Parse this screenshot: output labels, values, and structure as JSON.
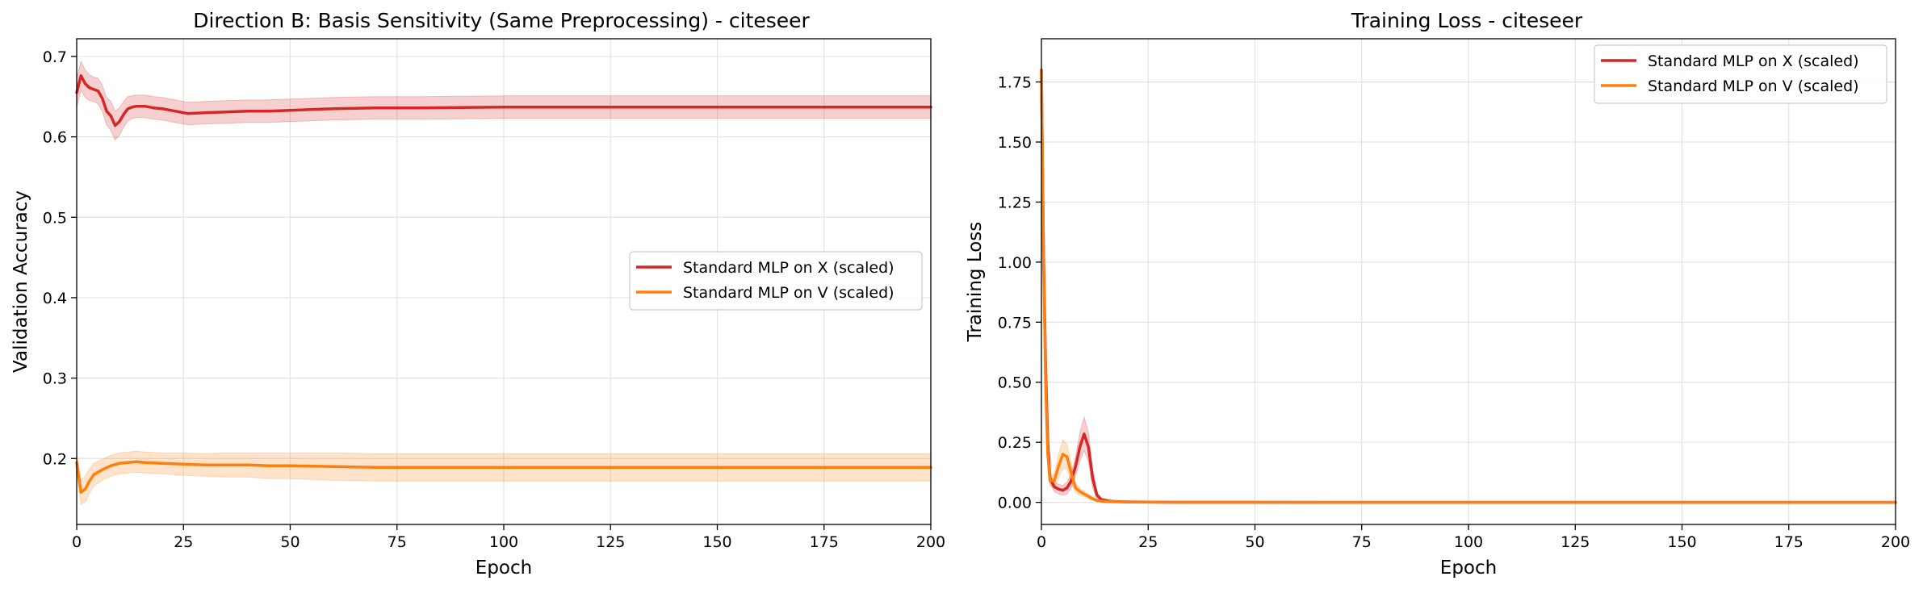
{
  "chart_data": [
    {
      "type": "line",
      "title": "Direction B: Basis Sensitivity (Same Preprocessing) - citeseer",
      "xlabel": "Epoch",
      "ylabel": "Validation Accuracy",
      "xlim": [
        0,
        200
      ],
      "ylim": [
        0.118,
        0.722
      ],
      "xticks": [
        0,
        25,
        50,
        75,
        100,
        125,
        150,
        175,
        200
      ],
      "yticks": [
        0.2,
        0.3,
        0.4,
        0.5,
        0.6,
        0.7
      ],
      "grid": true,
      "legend_position": "center-right",
      "series": [
        {
          "name": "Standard MLP on X (scaled)",
          "color": "#d62728",
          "x": [
            0,
            1,
            2,
            3,
            4,
            5,
            6,
            7,
            8,
            9,
            10,
            11,
            12,
            13,
            14,
            16,
            18,
            20,
            23,
            26,
            30,
            35,
            40,
            45,
            50,
            60,
            70,
            80,
            100,
            125,
            150,
            175,
            200
          ],
          "y": [
            0.655,
            0.676,
            0.666,
            0.661,
            0.659,
            0.657,
            0.648,
            0.632,
            0.626,
            0.614,
            0.619,
            0.628,
            0.635,
            0.637,
            0.638,
            0.638,
            0.636,
            0.635,
            0.632,
            0.629,
            0.63,
            0.631,
            0.632,
            0.632,
            0.633,
            0.635,
            0.636,
            0.636,
            0.637,
            0.637,
            0.637,
            0.637,
            0.637
          ],
          "band": [
            0.018,
            0.018,
            0.017,
            0.016,
            0.015,
            0.016,
            0.016,
            0.017,
            0.018,
            0.018,
            0.017,
            0.016,
            0.015,
            0.014,
            0.014,
            0.014,
            0.014,
            0.014,
            0.014,
            0.014,
            0.014,
            0.014,
            0.014,
            0.014,
            0.014,
            0.014,
            0.014,
            0.014,
            0.014,
            0.014,
            0.014,
            0.014,
            0.014
          ]
        },
        {
          "name": "Standard MLP on V (scaled)",
          "color": "#ff7f0e",
          "x": [
            0,
            1,
            2,
            3,
            4,
            6,
            8,
            10,
            12,
            14,
            16,
            20,
            25,
            30,
            35,
            40,
            45,
            50,
            60,
            70,
            80,
            90,
            100,
            125,
            150,
            175,
            200
          ],
          "y": [
            0.195,
            0.158,
            0.162,
            0.172,
            0.18,
            0.186,
            0.191,
            0.194,
            0.195,
            0.196,
            0.195,
            0.194,
            0.193,
            0.192,
            0.192,
            0.192,
            0.191,
            0.191,
            0.19,
            0.189,
            0.189,
            0.189,
            0.189,
            0.189,
            0.189,
            0.189,
            0.189
          ],
          "band": [
            0.012,
            0.015,
            0.016,
            0.015,
            0.014,
            0.013,
            0.013,
            0.013,
            0.013,
            0.013,
            0.013,
            0.013,
            0.014,
            0.014,
            0.015,
            0.015,
            0.016,
            0.016,
            0.017,
            0.017,
            0.017,
            0.017,
            0.017,
            0.017,
            0.017,
            0.017,
            0.017
          ]
        }
      ]
    },
    {
      "type": "line",
      "title": "Training Loss - citeseer",
      "xlabel": "Epoch",
      "ylabel": "Training Loss",
      "xlim": [
        0,
        200
      ],
      "ylim": [
        -0.092,
        1.93
      ],
      "xticks": [
        0,
        25,
        50,
        75,
        100,
        125,
        150,
        175,
        200
      ],
      "yticks": [
        0.0,
        0.25,
        0.5,
        0.75,
        1.0,
        1.25,
        1.5,
        1.75
      ],
      "grid": true,
      "legend_position": "top-right",
      "series": [
        {
          "name": "Standard MLP on X (scaled)",
          "color": "#d62728",
          "x": [
            0,
            0.5,
            1,
            1.5,
            2,
            3,
            4,
            5,
            6,
            7,
            8,
            9,
            10,
            11,
            12,
            13,
            14,
            16,
            18,
            20,
            25,
            30,
            40,
            50,
            75,
            100,
            125,
            150,
            175,
            200
          ],
          "y": [
            1.8,
            1.05,
            0.55,
            0.25,
            0.1,
            0.065,
            0.055,
            0.05,
            0.06,
            0.09,
            0.15,
            0.23,
            0.285,
            0.23,
            0.1,
            0.03,
            0.012,
            0.005,
            0.003,
            0.002,
            0.001,
            0.0005,
            0.0003,
            0.0002,
            0.0001,
            0.0001,
            0.0001,
            0.0001,
            0.0001,
            0.0001
          ],
          "band": [
            0.03,
            0.03,
            0.03,
            0.03,
            0.02,
            0.02,
            0.02,
            0.02,
            0.025,
            0.03,
            0.04,
            0.06,
            0.07,
            0.06,
            0.04,
            0.015,
            0.005,
            0.003,
            0.002,
            0.001,
            0.0005,
            0.0003,
            0.0002,
            0.0001,
            0.0001,
            0.0001,
            0.0001,
            0.0001,
            0.0001,
            0.0001
          ]
        },
        {
          "name": "Standard MLP on V (scaled)",
          "color": "#ff7f0e",
          "x": [
            0,
            0.5,
            1,
            1.5,
            2,
            3,
            4,
            5,
            6,
            7,
            8,
            9,
            10,
            11,
            12,
            13,
            14,
            16,
            18,
            20,
            25,
            30,
            40,
            50,
            75,
            100,
            125,
            150,
            175,
            200
          ],
          "y": [
            1.8,
            1.02,
            0.48,
            0.2,
            0.09,
            0.09,
            0.15,
            0.2,
            0.19,
            0.12,
            0.06,
            0.045,
            0.035,
            0.025,
            0.015,
            0.008,
            0.005,
            0.003,
            0.002,
            0.001,
            0.0008,
            0.0005,
            0.0003,
            0.0002,
            0.0001,
            0.0001,
            0.0001,
            0.0001,
            0.0001,
            0.0001
          ],
          "band": [
            0.03,
            0.03,
            0.03,
            0.03,
            0.02,
            0.03,
            0.05,
            0.06,
            0.05,
            0.04,
            0.02,
            0.015,
            0.012,
            0.01,
            0.007,
            0.004,
            0.003,
            0.002,
            0.001,
            0.001,
            0.0005,
            0.0003,
            0.0002,
            0.0001,
            0.0001,
            0.0001,
            0.0001,
            0.0001,
            0.0001,
            0.0001
          ]
        }
      ]
    }
  ]
}
